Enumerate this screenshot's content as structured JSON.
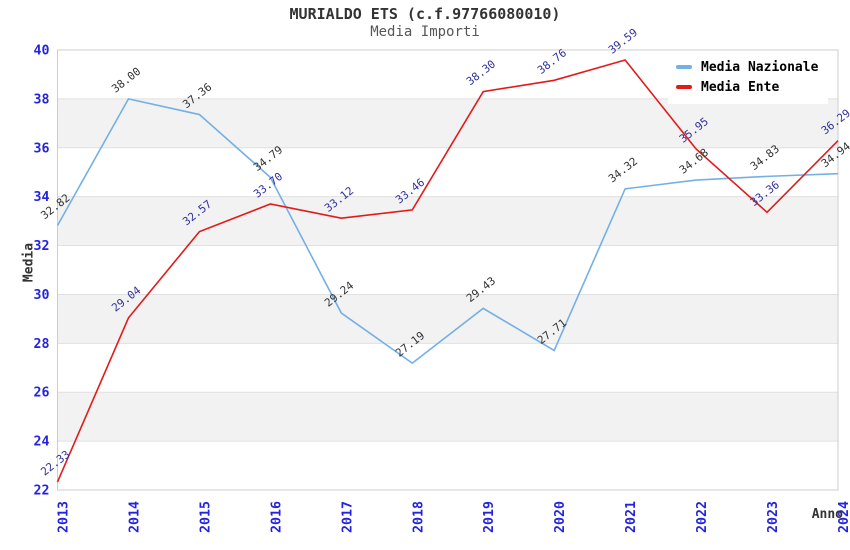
{
  "title": "MURIALDO ETS (c.f.97766080010)",
  "subtitle": "Media Importi",
  "chart_data": {
    "type": "line",
    "x": [
      2013,
      2014,
      2015,
      2016,
      2017,
      2018,
      2019,
      2020,
      2021,
      2022,
      2023,
      2024
    ],
    "series": [
      {
        "name": "Media Nazionale",
        "color": "#74b0e6",
        "label_color": "#333333",
        "values": [
          32.82,
          38.0,
          37.36,
          34.79,
          29.24,
          27.19,
          29.43,
          27.71,
          34.32,
          34.68,
          34.83,
          34.94
        ]
      },
      {
        "name": "Media Ente",
        "color": "#e31a1a",
        "label_color": "#31319c",
        "values": [
          22.33,
          29.04,
          32.57,
          33.7,
          33.12,
          33.46,
          38.3,
          38.76,
          39.59,
          35.95,
          33.36,
          36.29
        ]
      }
    ],
    "xlabel": "Anno",
    "ylabel": "Media",
    "ylim": [
      22,
      40
    ],
    "ytick_step": 2,
    "yticks": [
      22,
      24,
      26,
      28,
      30,
      32,
      34,
      36,
      38,
      40
    ],
    "grid": true,
    "legend_position": "top-right",
    "tick_label_color": "#2424e0",
    "alternate_band_color": "#f2f2f2",
    "grid_color": "#e0e0e0",
    "border_color": "#cdcdcd"
  }
}
